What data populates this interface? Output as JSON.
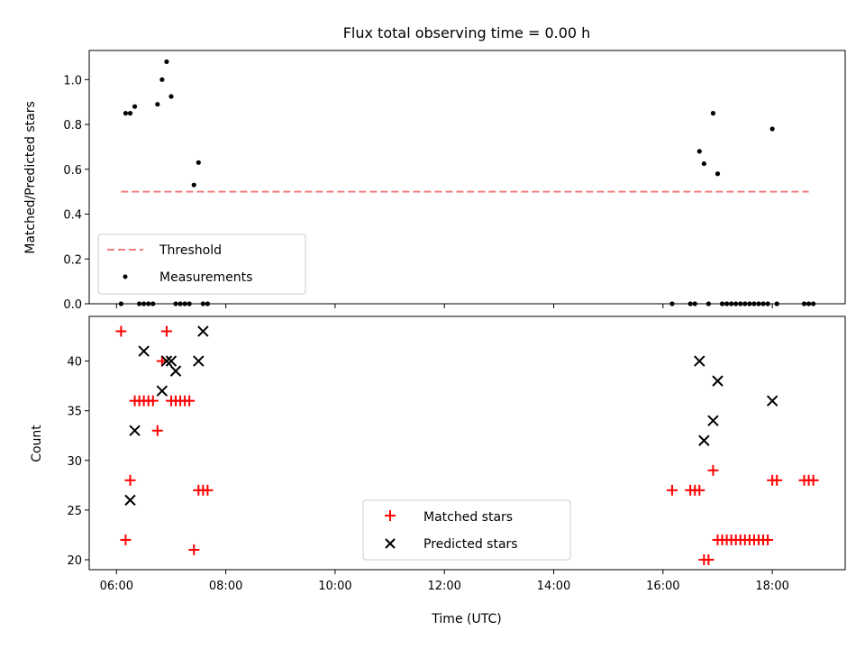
{
  "chart_data": [
    {
      "type": "scatter",
      "title": "Flux total observing time = 0.00 h",
      "xlabel": "",
      "ylabel": "Matched/Predicted stars",
      "xlim": [
        "05:30",
        "19:20"
      ],
      "ylim": [
        0,
        1.13
      ],
      "yticks": [
        0.0,
        0.2,
        0.4,
        0.6,
        0.8,
        1.0
      ],
      "ytick_labels": [
        "0.0",
        "0.2",
        "0.4",
        "0.6",
        "0.8",
        "1.0"
      ],
      "xticks": [
        "06:00",
        "08:00",
        "10:00",
        "12:00",
        "14:00",
        "16:00",
        "18:00"
      ],
      "legend_position": "lower-left",
      "series": [
        {
          "name": "Threshold",
          "kind": "dashed-line",
          "color": "#f08080",
          "x": [
            "06:05",
            "18:40"
          ],
          "y": [
            0.5,
            0.5
          ]
        },
        {
          "name": "Measurements",
          "kind": "dot",
          "color": "#000000",
          "x": [
            "06:05",
            "06:10",
            "06:15",
            "06:20",
            "06:25",
            "06:30",
            "06:35",
            "06:40",
            "06:45",
            "06:50",
            "06:55",
            "07:00",
            "07:05",
            "07:10",
            "07:15",
            "07:20",
            "07:25",
            "07:30",
            "07:35",
            "07:40",
            "16:10",
            "16:30",
            "16:35",
            "16:40",
            "16:45",
            "16:50",
            "16:55",
            "17:00",
            "17:05",
            "17:10",
            "17:15",
            "17:20",
            "17:25",
            "17:30",
            "17:35",
            "17:40",
            "17:45",
            "17:50",
            "17:55",
            "18:00",
            "18:05",
            "18:35",
            "18:40",
            "18:45"
          ],
          "y": [
            0,
            0.85,
            0.85,
            0.88,
            0,
            0,
            0,
            0,
            0.89,
            1.0,
            1.08,
            0.925,
            0,
            0,
            0,
            0,
            0.53,
            0.63,
            0,
            0,
            0,
            0,
            0,
            0.68,
            0.625,
            0,
            0.85,
            0.58,
            0,
            0,
            0,
            0,
            0,
            0,
            0,
            0,
            0,
            0,
            0,
            0.78,
            0,
            0,
            0,
            0
          ]
        }
      ]
    },
    {
      "type": "scatter",
      "title": "",
      "xlabel": "Time (UTC)",
      "ylabel": "Count",
      "xlim": [
        "05:30",
        "19:20"
      ],
      "ylim": [
        19,
        44.5
      ],
      "yticks": [
        20,
        25,
        30,
        35,
        40
      ],
      "ytick_labels": [
        "20",
        "25",
        "30",
        "35",
        "40"
      ],
      "xticks": [
        "06:00",
        "08:00",
        "10:00",
        "12:00",
        "14:00",
        "16:00",
        "18:00"
      ],
      "xtick_labels": [
        "06:00",
        "08:00",
        "10:00",
        "12:00",
        "14:00",
        "16:00",
        "18:00"
      ],
      "legend_position": "lower-center",
      "series": [
        {
          "name": "Matched stars",
          "kind": "plus",
          "color": "#ff0000",
          "x": [
            "06:05",
            "06:10",
            "06:15",
            "06:20",
            "06:25",
            "06:30",
            "06:35",
            "06:40",
            "06:45",
            "06:50",
            "06:55",
            "07:00",
            "07:05",
            "07:10",
            "07:15",
            "07:20",
            "07:25",
            "07:30",
            "07:35",
            "07:40",
            "16:10",
            "16:30",
            "16:35",
            "16:40",
            "16:45",
            "16:50",
            "16:55",
            "17:00",
            "17:05",
            "17:10",
            "17:15",
            "17:20",
            "17:25",
            "17:30",
            "17:35",
            "17:40",
            "17:45",
            "17:50",
            "17:55",
            "18:00",
            "18:05",
            "18:35",
            "18:40",
            "18:45"
          ],
          "y": [
            43,
            22,
            28,
            36,
            36,
            36,
            36,
            36,
            33,
            40,
            43,
            36,
            36,
            36,
            36,
            36,
            21,
            27,
            27,
            27,
            27,
            27,
            27,
            27,
            20,
            20,
            29,
            22,
            22,
            22,
            22,
            22,
            22,
            22,
            22,
            22,
            22,
            22,
            22,
            28,
            28,
            28,
            28,
            28
          ]
        },
        {
          "name": "Predicted stars",
          "kind": "x",
          "color": "#000000",
          "x": [
            "06:15",
            "06:20",
            "06:30",
            "06:50",
            "06:55",
            "07:00",
            "07:05",
            "07:30",
            "07:35",
            "16:40",
            "16:45",
            "16:55",
            "17:00",
            "18:00"
          ],
          "y": [
            26,
            33,
            41,
            37,
            40,
            40,
            39,
            40,
            43,
            40,
            32,
            34,
            38,
            36
          ]
        }
      ]
    }
  ]
}
